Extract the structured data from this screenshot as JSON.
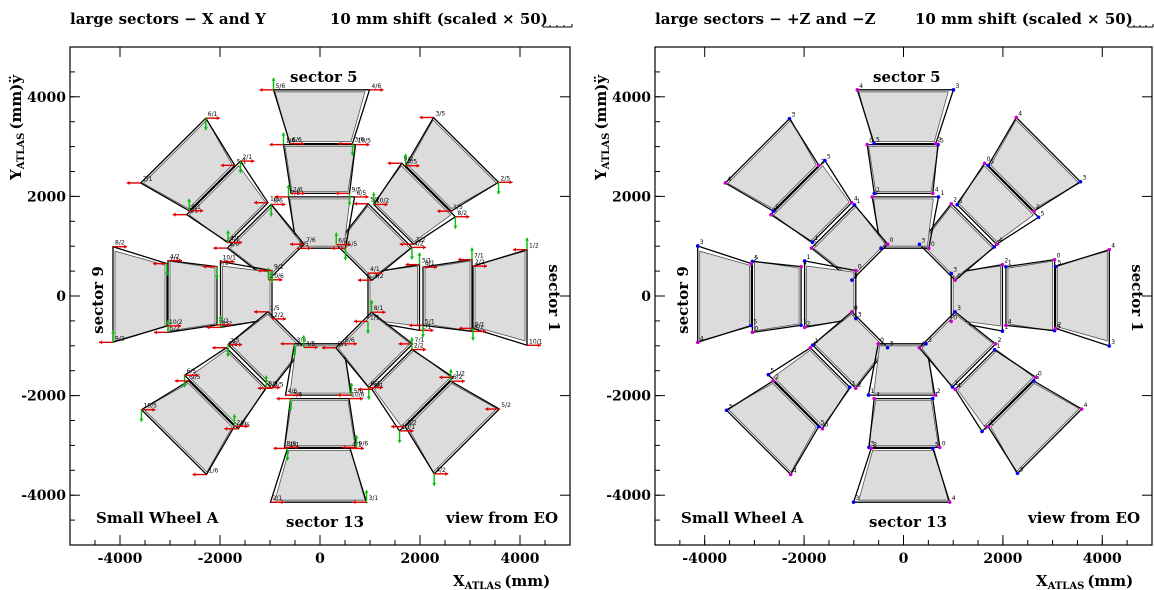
{
  "chart_data": [
    {
      "type": "diagram",
      "title": "large sectors − X and Y",
      "shift_label": "10 mm shift (scaled × 50)",
      "xlabel": "X",
      "xlabel_sub": "ATLAS",
      "xlabel_unit": "(mm)",
      "ylabel": "Y",
      "ylabel_sub": "ATLAS",
      "ylabel_unit": "(mm)ÿ",
      "xlim": [
        -5000,
        5000
      ],
      "ylim": [
        -5000,
        5000
      ],
      "xticks": [
        -4000,
        -2000,
        0,
        2000,
        4000
      ],
      "yticks": [
        -4000,
        -2000,
        0,
        2000,
        4000
      ],
      "annotations": [
        "sector 5",
        "sector 9",
        "sector 1",
        "sector 13",
        "Small Wheel A",
        "view from EO"
      ],
      "arrow_colors": [
        "#e00000",
        "#00c000"
      ],
      "point_labels": [
        "1/1",
        "2/1",
        "3/1",
        "4/1",
        "5/1",
        "6/1",
        "7/1",
        "8/1",
        "9/1",
        "10/1",
        "1/2",
        "2/2",
        "3/2",
        "4/2",
        "5/2",
        "6/2",
        "7/2",
        "8/2",
        "9/2",
        "10/2",
        "1/5",
        "2/5",
        "3/5",
        "4/5",
        "5/5",
        "6/5",
        "7/5",
        "8/5",
        "9/5",
        "10/5",
        "1/6",
        "2/6",
        "3/6",
        "4/6",
        "5/6",
        "6/6",
        "7/6",
        "8/6",
        "9/6",
        "10/6"
      ]
    },
    {
      "type": "diagram",
      "title": "large sectors − +Z and −Z",
      "shift_label": "10 mm shift (scaled × 50)",
      "xlabel": "X",
      "xlabel_sub": "ATLAS",
      "xlabel_unit": "(mm)",
      "ylabel": "Y",
      "ylabel_sub": "ATLAS",
      "ylabel_unit": "(mm)ÿ",
      "xlim": [
        -5000,
        5000
      ],
      "ylim": [
        -5000,
        5000
      ],
      "xticks": [
        -4000,
        -2000,
        0,
        2000,
        4000
      ],
      "yticks": [
        -4000,
        -2000,
        0,
        2000,
        4000
      ],
      "annotations": [
        "sector 5",
        "sector 9",
        "sector 1",
        "sector 13",
        "Small Wheel A",
        "view from EO"
      ],
      "arrow_colors": [
        "#0000ee",
        "#cc00cc"
      ],
      "point_labels": [
        "0",
        "1",
        "2",
        "3",
        "4",
        "5"
      ]
    }
  ]
}
